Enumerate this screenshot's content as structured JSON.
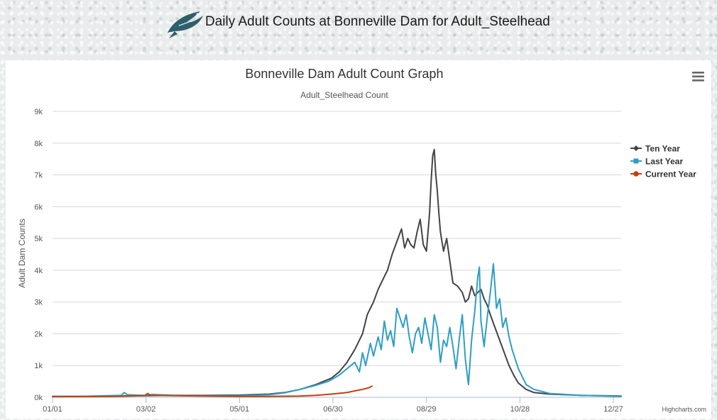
{
  "page": {
    "title": "Daily Adult Counts at Bonneville Dam for Adult_Steelhead"
  },
  "icons": {
    "logo": "steelhead-fish-icon",
    "menu": "hamburger-menu-icon"
  },
  "credit": "Highcharts.com",
  "chart_data": {
    "type": "line",
    "title": "Bonneville Dam Adult Count Graph",
    "subtitle": "Adult_Steelhead Count",
    "xlabel": "",
    "ylabel": "Adult Dam Counts",
    "x_domain": [
      1,
      366
    ],
    "ylim": [
      0,
      9000
    ],
    "y_ticks": [
      0,
      1000,
      2000,
      3000,
      4000,
      5000,
      6000,
      7000,
      8000,
      9000
    ],
    "y_tick_labels": [
      "0k",
      "1k",
      "2k",
      "3k",
      "4k",
      "5k",
      "6k",
      "7k",
      "8k",
      "9k"
    ],
    "x_tick_days": [
      1,
      61,
      121,
      181,
      241,
      301,
      361
    ],
    "x_tick_labels": [
      "01/01",
      "03/02",
      "05/01",
      "06/30",
      "08/29",
      "10/28",
      "12/27"
    ],
    "grid": true,
    "legend_position": "top-right",
    "series": [
      {
        "name": "Ten Year",
        "color": "#434348",
        "marker": "diamond",
        "points": [
          [
            1,
            30
          ],
          [
            20,
            30
          ],
          [
            40,
            40
          ],
          [
            60,
            50
          ],
          [
            80,
            60
          ],
          [
            100,
            60
          ],
          [
            121,
            70
          ],
          [
            140,
            100
          ],
          [
            150,
            150
          ],
          [
            160,
            250
          ],
          [
            170,
            400
          ],
          [
            180,
            600
          ],
          [
            185,
            800
          ],
          [
            190,
            1100
          ],
          [
            195,
            1500
          ],
          [
            200,
            2000
          ],
          [
            203,
            2600
          ],
          [
            207,
            3000
          ],
          [
            210,
            3400
          ],
          [
            213,
            3700
          ],
          [
            216,
            4000
          ],
          [
            219,
            4500
          ],
          [
            222,
            4900
          ],
          [
            225,
            5300
          ],
          [
            227,
            4700
          ],
          [
            229,
            5000
          ],
          [
            231,
            4800
          ],
          [
            233,
            4700
          ],
          [
            235,
            5200
          ],
          [
            237,
            5600
          ],
          [
            239,
            4800
          ],
          [
            241,
            4600
          ],
          [
            243,
            5800
          ],
          [
            244,
            6800
          ],
          [
            245,
            7600
          ],
          [
            246,
            7800
          ],
          [
            247,
            7000
          ],
          [
            248,
            6500
          ],
          [
            249,
            5800
          ],
          [
            250,
            5200
          ],
          [
            252,
            4600
          ],
          [
            254,
            5000
          ],
          [
            256,
            4300
          ],
          [
            258,
            3600
          ],
          [
            261,
            3500
          ],
          [
            264,
            3300
          ],
          [
            266,
            3000
          ],
          [
            268,
            3100
          ],
          [
            270,
            3500
          ],
          [
            272,
            3200
          ],
          [
            274,
            3300
          ],
          [
            276,
            3400
          ],
          [
            278,
            3100
          ],
          [
            280,
            2900
          ],
          [
            282,
            2600
          ],
          [
            285,
            2200
          ],
          [
            288,
            1800
          ],
          [
            291,
            1400
          ],
          [
            294,
            1000
          ],
          [
            297,
            700
          ],
          [
            300,
            450
          ],
          [
            305,
            250
          ],
          [
            310,
            150
          ],
          [
            320,
            100
          ],
          [
            340,
            60
          ],
          [
            366,
            40
          ]
        ]
      },
      {
        "name": "Last Year",
        "color": "#2f9ec4",
        "marker": "square",
        "points": [
          [
            1,
            30
          ],
          [
            20,
            30
          ],
          [
            45,
            60
          ],
          [
            47,
            150
          ],
          [
            49,
            80
          ],
          [
            60,
            60
          ],
          [
            65,
            90
          ],
          [
            80,
            60
          ],
          [
            100,
            50
          ],
          [
            121,
            50
          ],
          [
            140,
            80
          ],
          [
            150,
            140
          ],
          [
            160,
            250
          ],
          [
            170,
            380
          ],
          [
            178,
            500
          ],
          [
            185,
            700
          ],
          [
            190,
            900
          ],
          [
            195,
            1100
          ],
          [
            198,
            800
          ],
          [
            200,
            1400
          ],
          [
            202,
            1000
          ],
          [
            205,
            1700
          ],
          [
            207,
            1300
          ],
          [
            210,
            1900
          ],
          [
            212,
            1500
          ],
          [
            214,
            2400
          ],
          [
            216,
            1800
          ],
          [
            218,
            2100
          ],
          [
            220,
            1600
          ],
          [
            222,
            2800
          ],
          [
            224,
            2500
          ],
          [
            226,
            2200
          ],
          [
            228,
            2600
          ],
          [
            230,
            1900
          ],
          [
            232,
            1400
          ],
          [
            234,
            2000
          ],
          [
            236,
            2200
          ],
          [
            238,
            1700
          ],
          [
            240,
            2500
          ],
          [
            242,
            2000
          ],
          [
            244,
            1500
          ],
          [
            246,
            2600
          ],
          [
            248,
            2200
          ],
          [
            250,
            1100
          ],
          [
            252,
            1800
          ],
          [
            254,
            1600
          ],
          [
            256,
            2200
          ],
          [
            258,
            1600
          ],
          [
            260,
            900
          ],
          [
            262,
            1800
          ],
          [
            264,
            2600
          ],
          [
            266,
            1200
          ],
          [
            268,
            400
          ],
          [
            270,
            1800
          ],
          [
            272,
            2700
          ],
          [
            274,
            3800
          ],
          [
            275,
            4100
          ],
          [
            276,
            2400
          ],
          [
            278,
            1600
          ],
          [
            280,
            2500
          ],
          [
            282,
            3300
          ],
          [
            284,
            4200
          ],
          [
            286,
            2800
          ],
          [
            288,
            3100
          ],
          [
            290,
            2200
          ],
          [
            292,
            2500
          ],
          [
            294,
            1900
          ],
          [
            296,
            1500
          ],
          [
            298,
            1200
          ],
          [
            300,
            900
          ],
          [
            302,
            700
          ],
          [
            305,
            400
          ],
          [
            310,
            250
          ],
          [
            320,
            120
          ],
          [
            340,
            60
          ],
          [
            366,
            30
          ]
        ]
      },
      {
        "name": "Current Year",
        "color": "#c2410c",
        "marker": "circle",
        "points": [
          [
            1,
            20
          ],
          [
            20,
            25
          ],
          [
            40,
            30
          ],
          [
            60,
            50
          ],
          [
            62,
            120
          ],
          [
            64,
            60
          ],
          [
            80,
            50
          ],
          [
            100,
            40
          ],
          [
            120,
            30
          ],
          [
            140,
            30
          ],
          [
            160,
            40
          ],
          [
            170,
            60
          ],
          [
            180,
            100
          ],
          [
            190,
            150
          ],
          [
            195,
            200
          ],
          [
            200,
            250
          ],
          [
            204,
            300
          ],
          [
            206,
            350
          ]
        ]
      }
    ]
  }
}
